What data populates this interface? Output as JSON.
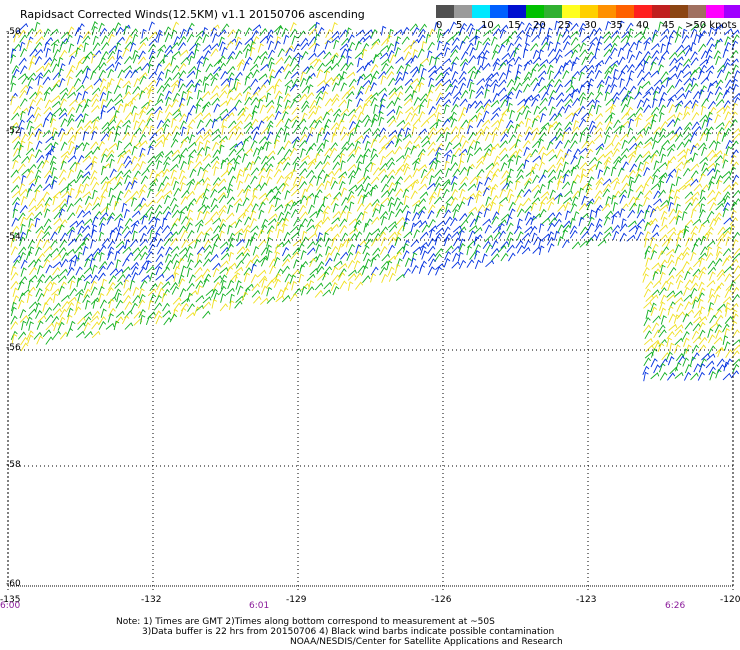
{
  "title": "Rapidsact Corrected Winds(12.5KM) v1.1 20150706 ascending",
  "legend": {
    "labels": [
      "0",
      "5",
      "10",
      "15",
      "20",
      "25",
      "30",
      "35",
      "40",
      "45",
      ">50 knots"
    ],
    "colors": [
      "#505050",
      "#9a9a9a",
      "#00e8ff",
      "#0060ff",
      "#0010d0",
      "#00c000",
      "#30b030",
      "#ffff20",
      "#ffd000",
      "#ff9000",
      "#ff6000",
      "#ff2020",
      "#c02020",
      "#8b4513",
      "#a07060",
      "#ff00ff",
      "#a000ff"
    ]
  },
  "axes": {
    "latitudes": [
      "-50",
      "-52",
      "-54",
      "-56",
      "-58",
      "-60"
    ],
    "longitudes": [
      "-135",
      "-132",
      "-129",
      "-126",
      "-123",
      "-120"
    ]
  },
  "times": [
    "6:00",
    "6:01",
    "6:26"
  ],
  "notes": {
    "line1": "Note: 1) Times are GMT 2)Times along bottom correspond to measurement at ~50S",
    "line2": "3)Data buffer is 22 hrs from 20150706 4) Black wind barbs indicate possible contamination",
    "line3": "NOAA/NESDIS/Center for Satellite Applications and Research"
  },
  "wind_colors": {
    "low": "#0030e0",
    "mid": "#10b020",
    "high": "#f0e020",
    "higher": "#e8c000"
  }
}
